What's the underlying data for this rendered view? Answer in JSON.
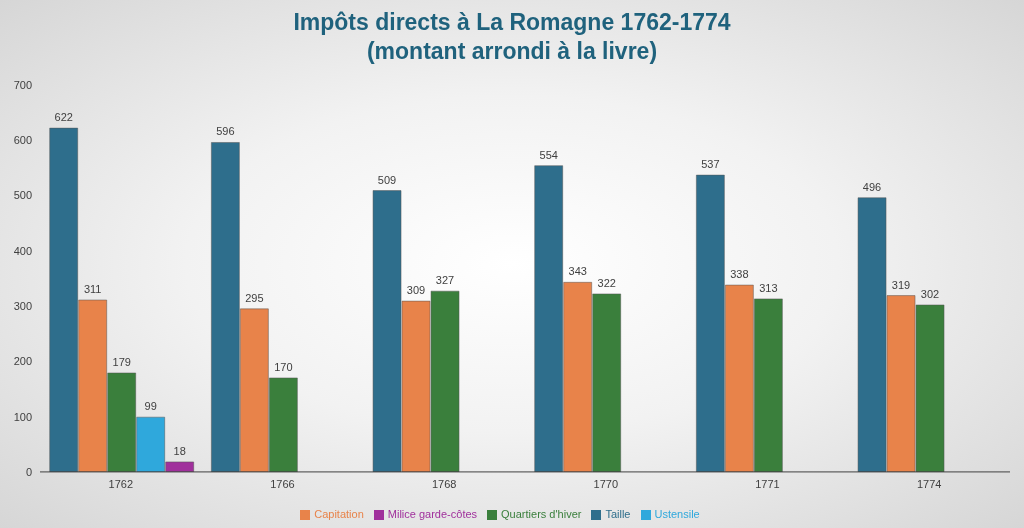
{
  "chart_data": {
    "type": "bar",
    "title": "Impôts directs à La Romagne 1762-1774",
    "subtitle": "(montant arrondi à la livre)",
    "categories": [
      "1762",
      "1766",
      "1768",
      "1770",
      "1771",
      "1774"
    ],
    "series": [
      {
        "name": "Taille",
        "color": "#2e6e8c",
        "values": [
          622,
          596,
          509,
          554,
          537,
          496
        ]
      },
      {
        "name": "Capitation",
        "color": "#e8834a",
        "values": [
          311,
          295,
          309,
          343,
          338,
          319
        ]
      },
      {
        "name": "Quartiers d'hiver",
        "color": "#3a7f3c",
        "values": [
          179,
          170,
          327,
          322,
          313,
          302
        ]
      },
      {
        "name": "Ustensile",
        "color": "#2fa8dc",
        "values": [
          99,
          null,
          null,
          null,
          null,
          null
        ]
      },
      {
        "name": "Milice garde-côtes",
        "color": "#a0309c",
        "values": [
          18,
          null,
          null,
          null,
          null,
          null
        ]
      }
    ],
    "ylim": [
      0,
      700
    ],
    "yticks": [
      0,
      100,
      200,
      300,
      400,
      500,
      600,
      700
    ],
    "grid": false,
    "legend": "bottom",
    "data_labels": true
  }
}
